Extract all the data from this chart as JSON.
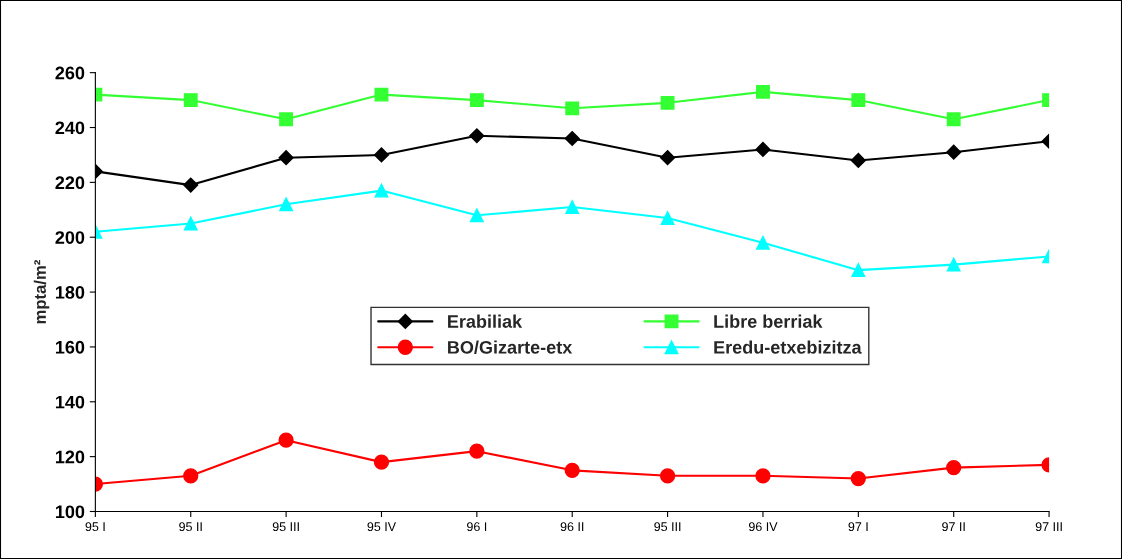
{
  "chart_data": {
    "type": "line",
    "ylabel": "mpta/m²",
    "categories": [
      "95 I",
      "95 II",
      "95 III",
      "95 IV",
      "96 I",
      "96 II",
      "95 III",
      "96 IV",
      "97 I",
      "97 II",
      "97 III"
    ],
    "series": [
      {
        "name": "Erabiliak",
        "color": "#000000",
        "marker": "diamond",
        "values": [
          224,
          219,
          229,
          230,
          237,
          236,
          229,
          232,
          228,
          231,
          235
        ]
      },
      {
        "name": "Libre berriak",
        "color": "#33ff33",
        "marker": "square",
        "values": [
          252,
          250,
          243,
          252,
          250,
          247,
          249,
          253,
          250,
          243,
          250
        ]
      },
      {
        "name": "BO/Gizarte-etx",
        "color": "#ff0000",
        "marker": "circle",
        "values": [
          110,
          113,
          126,
          118,
          122,
          115,
          113,
          113,
          112,
          116,
          117
        ]
      },
      {
        "name": "Eredu-etxebizitza",
        "color": "#00ffff",
        "marker": "triangle",
        "values": [
          202,
          205,
          212,
          217,
          208,
          211,
          207,
          198,
          188,
          190,
          193
        ]
      }
    ],
    "ylim": [
      100,
      260
    ],
    "yticks": [
      100,
      120,
      140,
      160,
      180,
      200,
      220,
      240,
      260
    ],
    "grid": false,
    "legend": "center",
    "line_style": "solid"
  }
}
